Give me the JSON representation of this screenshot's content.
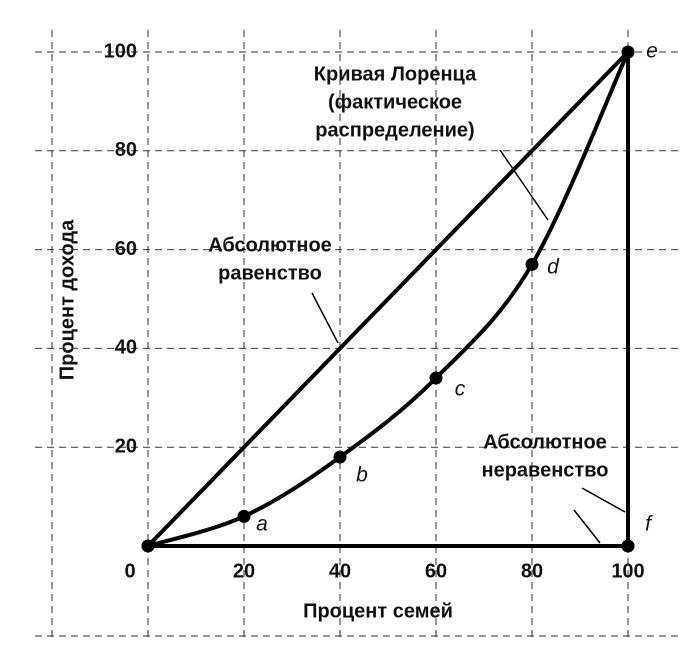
{
  "chart_data": {
    "type": "line",
    "xlabel": "Процент семей",
    "ylabel": "Процент дохода",
    "xlim": [
      0,
      100
    ],
    "ylim": [
      0,
      100
    ],
    "xticks": [
      0,
      20,
      40,
      60,
      80,
      100
    ],
    "yticks": [
      20,
      40,
      60,
      80,
      100
    ],
    "grid": true,
    "color": "#000000",
    "series": [
      {
        "x": [
          0,
          20,
          40,
          60,
          80,
          100
        ],
        "y": [
          0,
          6,
          18,
          34,
          57,
          100
        ],
        "point_labels": [
          null,
          "a",
          "b",
          "c",
          "d",
          "e"
        ],
        "smooth": true
      },
      {
        "x": [
          0,
          100
        ],
        "y": [
          0,
          100
        ],
        "point_labels": [
          null,
          null
        ],
        "smooth": false
      },
      {
        "x": [
          0,
          100,
          100
        ],
        "y": [
          0,
          0,
          100
        ],
        "point_labels": [
          null,
          "f",
          null
        ],
        "smooth": false
      }
    ],
    "annotations": [
      {
        "lines": [
          "Кривая Лоренца",
          "(фактическое",
          "распределение)"
        ]
      },
      {
        "lines": [
          "Абсолютное",
          "равенство"
        ]
      },
      {
        "lines": [
          "Абсолютное",
          "неравенство"
        ]
      }
    ]
  }
}
